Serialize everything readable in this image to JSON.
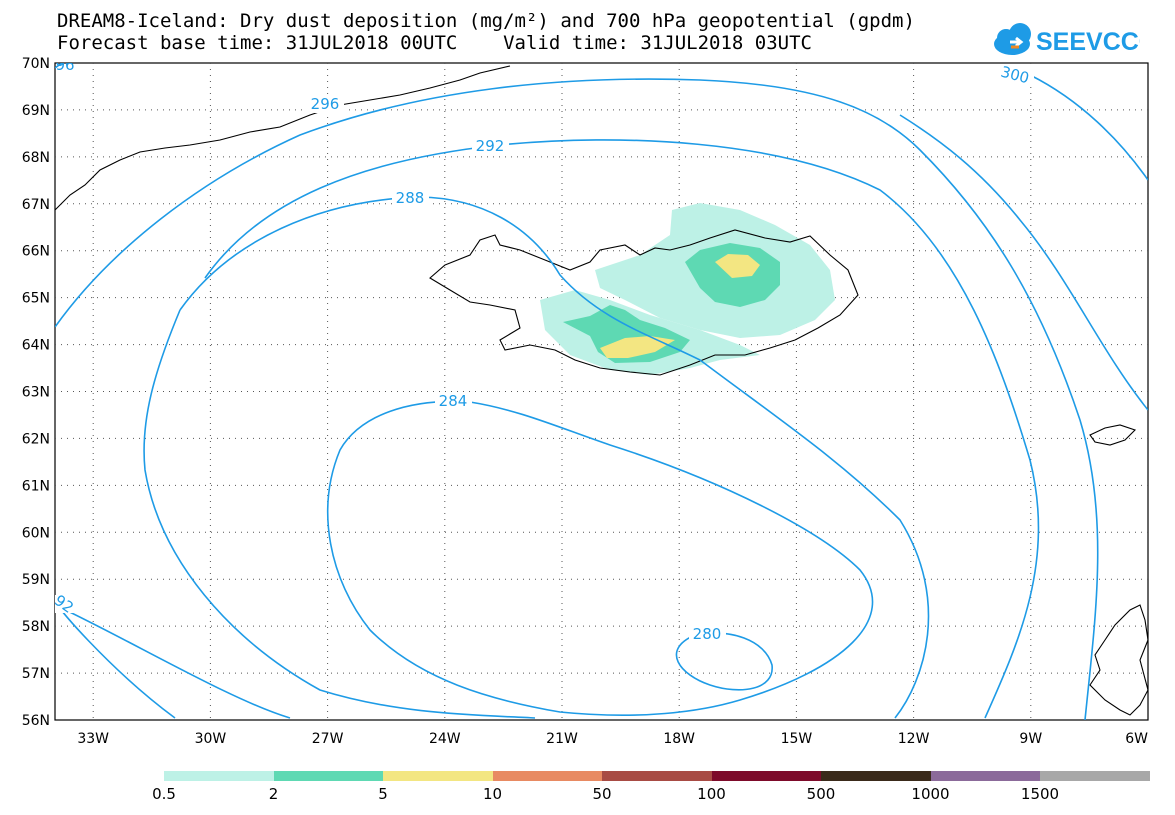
{
  "title": {
    "line1": "DREAM8-Iceland: Dry dust deposition (mg/m²) and 700 hPa geopotential (gpdm)",
    "line2": "Forecast base time: 31JUL2018 00UTC    Valid time: 31JUL2018 03UTC"
  },
  "logo": {
    "text": "SEEVCCC",
    "icon": "cloud-icon",
    "color": "#1e9be6"
  },
  "axes": {
    "lat_labels": [
      "70N",
      "69N",
      "68N",
      "67N",
      "66N",
      "65N",
      "64N",
      "63N",
      "62N",
      "61N",
      "60N",
      "59N",
      "58N",
      "57N",
      "56N"
    ],
    "lon_labels": [
      "33W",
      "30W",
      "27W",
      "24W",
      "21W",
      "18W",
      "15W",
      "12W",
      "9W",
      "6W"
    ]
  },
  "contours": {
    "color": "#1e9be6",
    "labels": [
      "296",
      "292",
      "288",
      "284",
      "280",
      "300",
      "92",
      "96"
    ]
  },
  "colorbar": {
    "colors": [
      "#bdf1e6",
      "#5ed9b3",
      "#f3e682",
      "#e88a62",
      "#a84b44",
      "#7d0a2a",
      "#3a2a1a",
      "#8b6a9a",
      "#a8a8a8"
    ],
    "labels": [
      "0.5",
      "2",
      "5",
      "10",
      "50",
      "100",
      "500",
      "1000",
      "1500"
    ]
  },
  "dust": {
    "colors": {
      "light": "#bdf1e6",
      "mid": "#5ed9b3",
      "high": "#f3e682"
    }
  }
}
